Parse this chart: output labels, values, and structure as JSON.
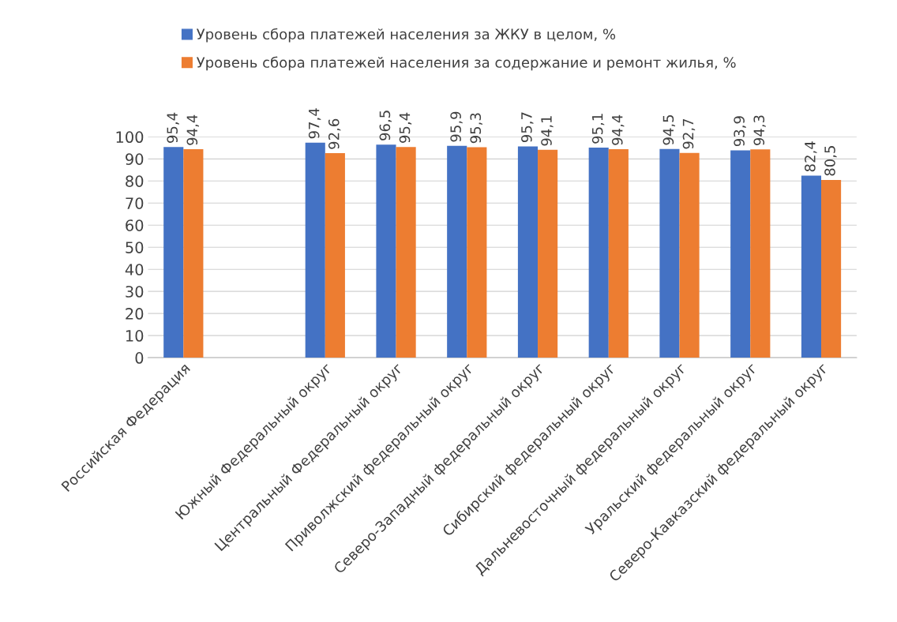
{
  "chart_data": {
    "type": "bar",
    "categories": [
      "Российская Федерация",
      null,
      "Южный Федеральный округ",
      "Центральный Федеральный округ",
      "Приволжский федеральный округ",
      "Северо-Западный федеральный округ",
      "Сибирский федеральный округ",
      "Дальневосточный федеральный округ",
      "Уральский федеральный округ",
      "Северо-Кавказский федеральный округ"
    ],
    "series": [
      {
        "name": "Уровень сбора платежей населения за ЖКУ в целом, %",
        "color": "#4472c4",
        "values": [
          95.4,
          null,
          97.4,
          96.5,
          95.9,
          95.7,
          95.1,
          94.5,
          93.9,
          82.4
        ],
        "value_labels": [
          "95,4",
          null,
          "97,4",
          "96,5",
          "95,9",
          "95,7",
          "95,1",
          "94,5",
          "93,9",
          "82,4"
        ]
      },
      {
        "name": "Уровень сбора платежей населения за содержание и ремонт жилья, %",
        "color": "#ed7d31",
        "values": [
          94.4,
          null,
          92.6,
          95.4,
          95.3,
          94.1,
          94.4,
          92.7,
          94.3,
          80.5
        ],
        "value_labels": [
          "94,4",
          null,
          "92,6",
          "95,4",
          "95,3",
          "94,1",
          "94,4",
          "92,7",
          "94,3",
          "80,5"
        ]
      }
    ],
    "ylim": [
      0,
      100
    ],
    "yticks": [
      0,
      10,
      20,
      30,
      40,
      50,
      60,
      70,
      80,
      90,
      100
    ],
    "grid": "y",
    "legend": "top"
  }
}
